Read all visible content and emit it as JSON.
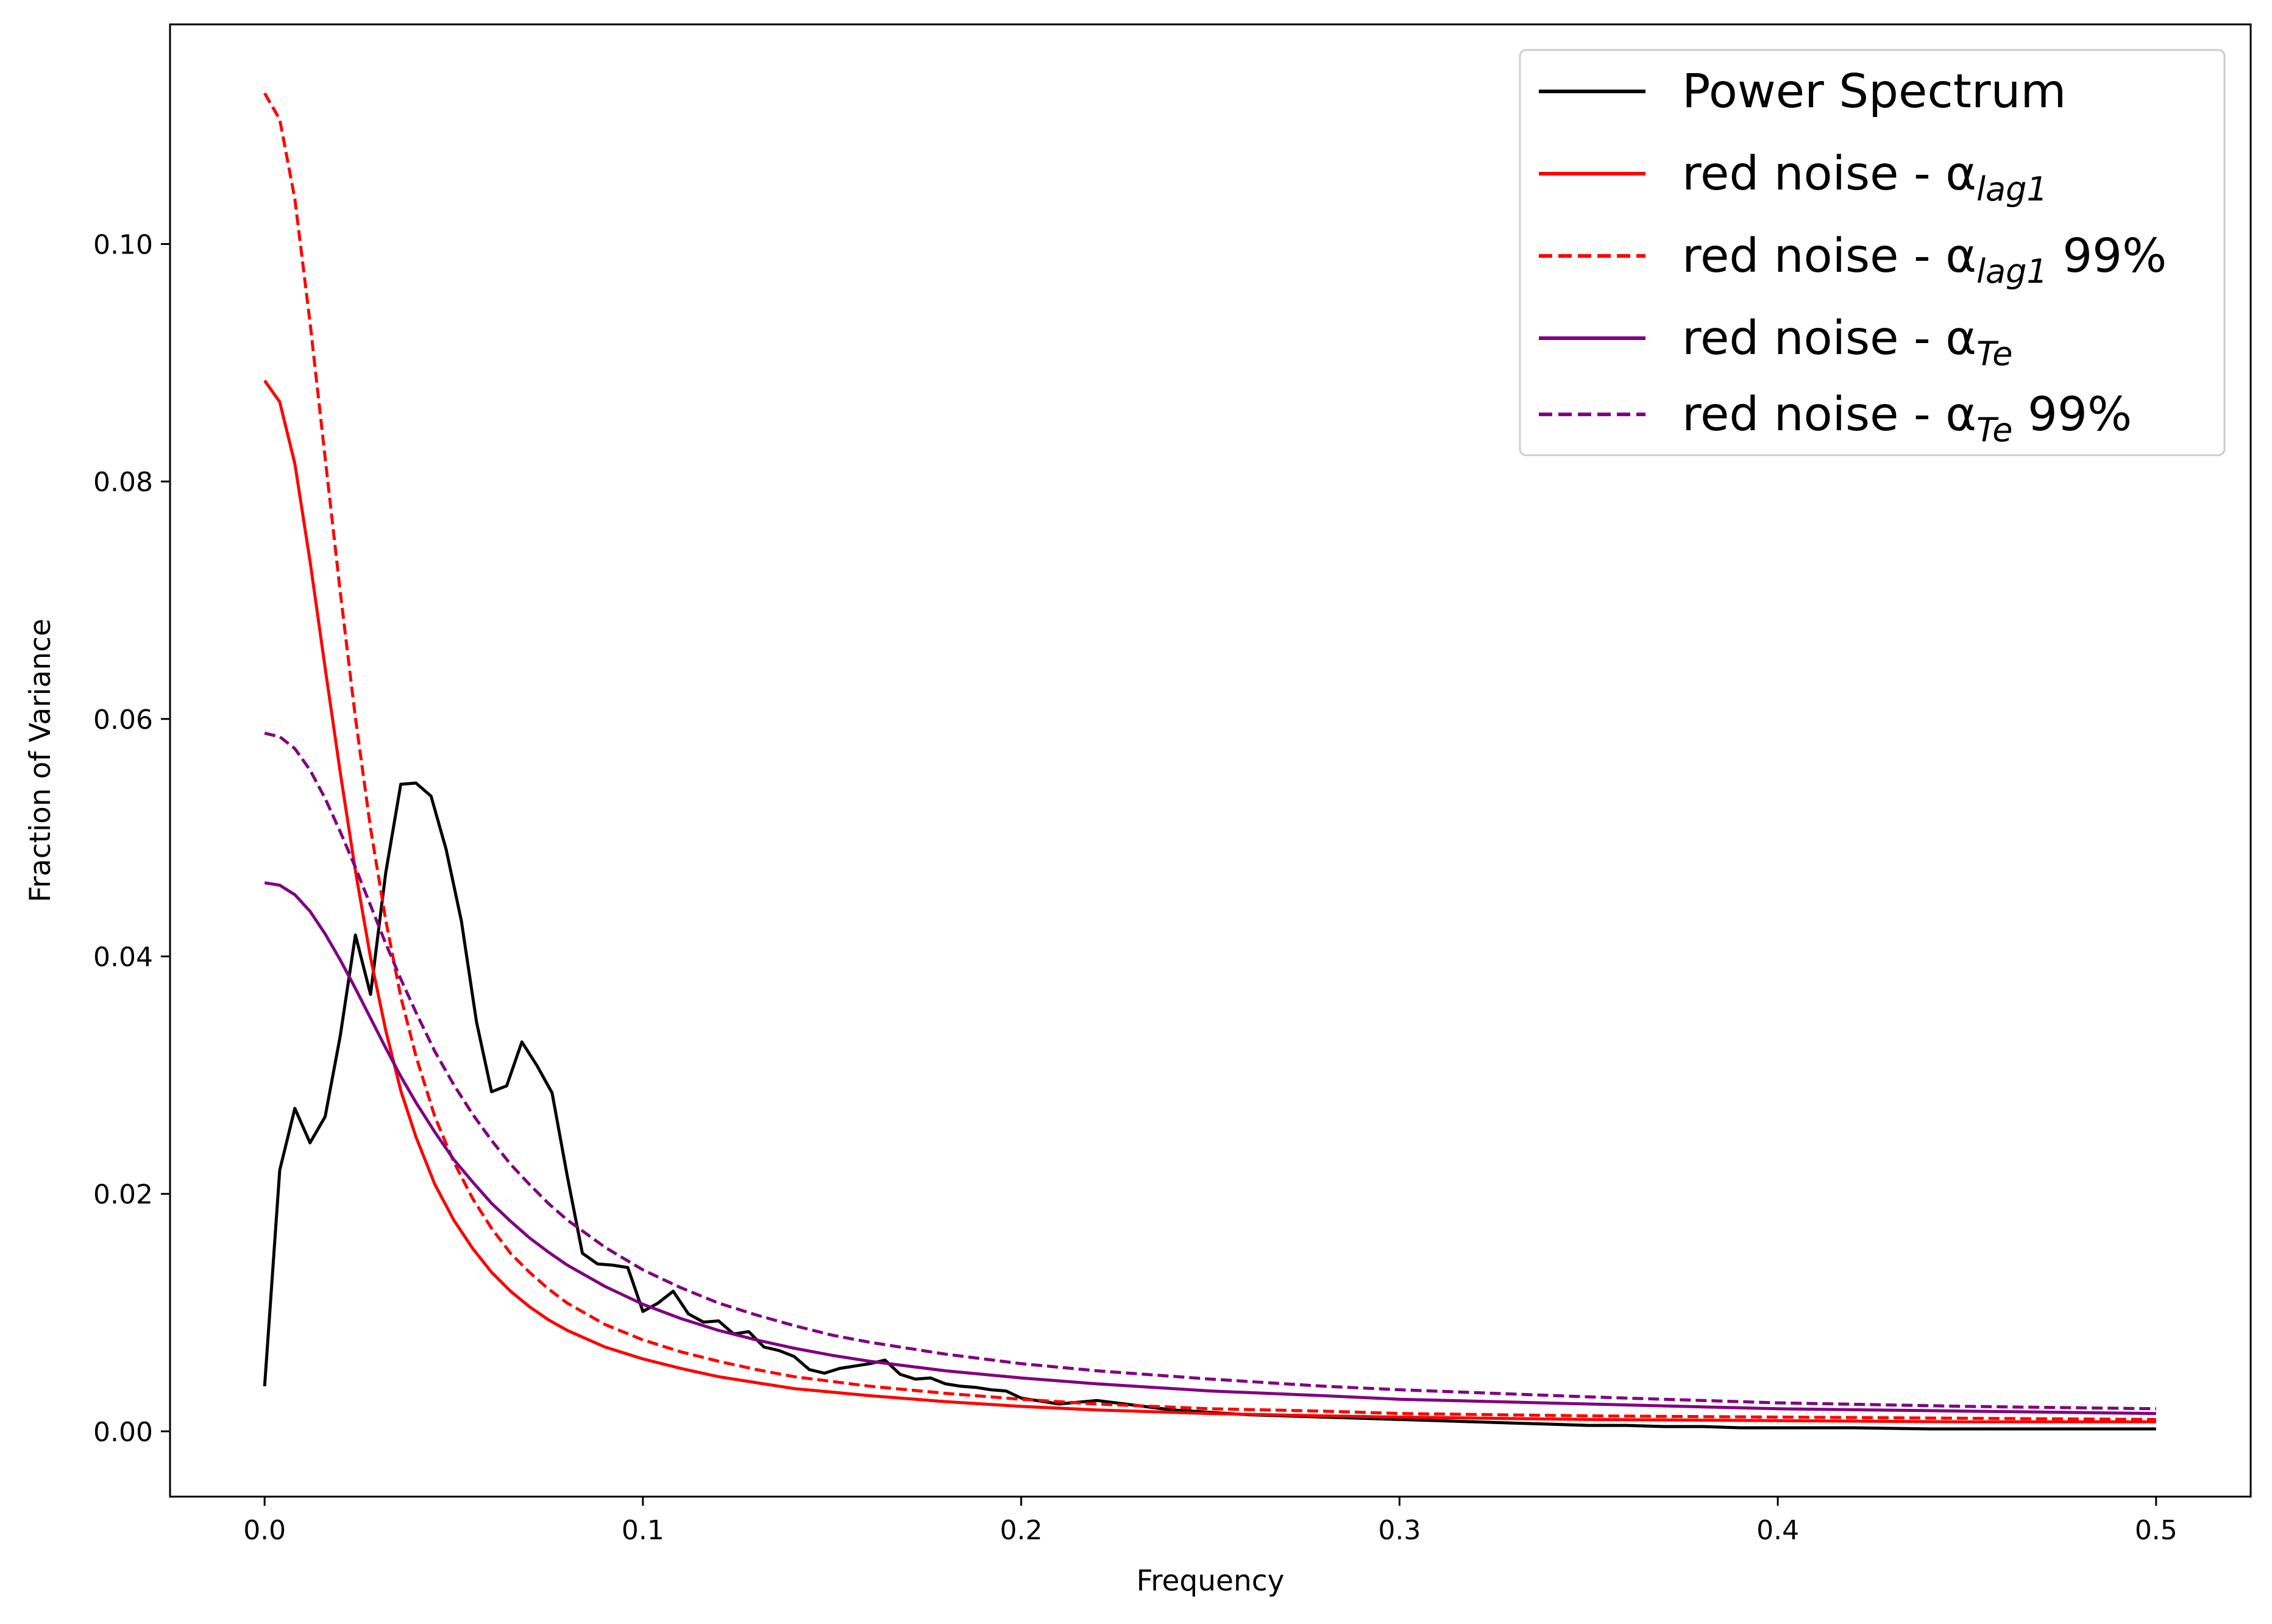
{
  "chart_data": {
    "type": "line",
    "title": "",
    "xlabel": "Frequency",
    "ylabel": "Fraction of Variance",
    "xlim": [
      -0.025,
      0.525
    ],
    "ylim": [
      -0.0055,
      0.1185
    ],
    "xticks": [
      0.0,
      0.1,
      0.2,
      0.3,
      0.4,
      0.5
    ],
    "xtick_labels": [
      "0.0",
      "0.1",
      "0.2",
      "0.3",
      "0.4",
      "0.5"
    ],
    "yticks": [
      0.0,
      0.02,
      0.04,
      0.06,
      0.08,
      0.1
    ],
    "ytick_labels": [
      "0.00",
      "0.02",
      "0.04",
      "0.06",
      "0.08",
      "0.10"
    ],
    "grid": false,
    "legend_position": "top-right",
    "series": [
      {
        "name": "Power Spectrum",
        "label_main": "Power Spectrum",
        "label_sub": "",
        "label_suffix": "",
        "color": "#000000",
        "dash": "solid",
        "x": [
          0.0,
          0.004,
          0.008,
          0.012,
          0.016,
          0.02,
          0.024,
          0.028,
          0.032,
          0.036,
          0.04,
          0.044,
          0.048,
          0.052,
          0.056,
          0.06,
          0.064,
          0.068,
          0.072,
          0.076,
          0.08,
          0.084,
          0.088,
          0.092,
          0.096,
          0.1,
          0.104,
          0.108,
          0.112,
          0.116,
          0.12,
          0.124,
          0.128,
          0.132,
          0.136,
          0.14,
          0.144,
          0.148,
          0.152,
          0.156,
          0.16,
          0.164,
          0.168,
          0.172,
          0.176,
          0.18,
          0.184,
          0.188,
          0.192,
          0.196,
          0.2,
          0.21,
          0.22,
          0.23,
          0.24,
          0.25,
          0.26,
          0.27,
          0.28,
          0.29,
          0.3,
          0.31,
          0.32,
          0.33,
          0.34,
          0.35,
          0.36,
          0.37,
          0.38,
          0.39,
          0.4,
          0.42,
          0.44,
          0.46,
          0.48,
          0.5
        ],
        "y": [
          0.0038,
          0.022,
          0.0272,
          0.0243,
          0.0265,
          0.0333,
          0.0418,
          0.0368,
          0.047,
          0.0545,
          0.0546,
          0.0535,
          0.049,
          0.043,
          0.0345,
          0.0286,
          0.0291,
          0.0328,
          0.0308,
          0.0285,
          0.0215,
          0.015,
          0.0141,
          0.014,
          0.0138,
          0.0101,
          0.0108,
          0.0118,
          0.0099,
          0.0092,
          0.0093,
          0.0082,
          0.0084,
          0.0071,
          0.0068,
          0.0063,
          0.0052,
          0.0049,
          0.0053,
          0.0055,
          0.0057,
          0.006,
          0.0048,
          0.0044,
          0.0045,
          0.004,
          0.0038,
          0.0037,
          0.0035,
          0.0034,
          0.0028,
          0.0023,
          0.0026,
          0.0022,
          0.0018,
          0.0016,
          0.0014,
          0.0013,
          0.0012,
          0.0011,
          0.001,
          0.0009,
          0.0008,
          0.0007,
          0.0006,
          0.0005,
          0.0005,
          0.0004,
          0.0004,
          0.0003,
          0.0003,
          0.0003,
          0.0002,
          0.0002,
          0.0002,
          0.0002
        ]
      },
      {
        "name": "red noise - αlag1",
        "label_main": "red noise - α",
        "label_sub": "lag1",
        "label_suffix": "",
        "color": "#ff0000",
        "dash": "solid",
        "x": [
          0.0,
          0.004,
          0.008,
          0.012,
          0.016,
          0.02,
          0.024,
          0.028,
          0.032,
          0.036,
          0.04,
          0.045,
          0.05,
          0.055,
          0.06,
          0.065,
          0.07,
          0.075,
          0.08,
          0.09,
          0.1,
          0.11,
          0.12,
          0.13,
          0.14,
          0.15,
          0.16,
          0.18,
          0.2,
          0.22,
          0.25,
          0.28,
          0.3,
          0.35,
          0.4,
          0.45,
          0.5
        ],
        "y": [
          0.0885,
          0.0867,
          0.0815,
          0.0733,
          0.0643,
          0.0555,
          0.0472,
          0.0399,
          0.0338,
          0.0287,
          0.0248,
          0.0208,
          0.0178,
          0.0154,
          0.0134,
          0.0118,
          0.0105,
          0.0094,
          0.0085,
          0.0071,
          0.0061,
          0.0053,
          0.0046,
          0.0041,
          0.0036,
          0.0033,
          0.003,
          0.0025,
          0.0021,
          0.0018,
          0.0015,
          0.0013,
          0.0012,
          0.001,
          0.0009,
          0.0008,
          0.0008
        ]
      },
      {
        "name": "red noise - αlag1 99%",
        "label_main": "red noise - α",
        "label_sub": "lag1",
        "label_suffix": " 99%",
        "color": "#ff0000",
        "dash": "dashed",
        "x": [
          0.0,
          0.004,
          0.008,
          0.012,
          0.016,
          0.02,
          0.024,
          0.028,
          0.032,
          0.036,
          0.04,
          0.045,
          0.05,
          0.055,
          0.06,
          0.065,
          0.07,
          0.075,
          0.08,
          0.09,
          0.1,
          0.11,
          0.12,
          0.13,
          0.14,
          0.15,
          0.16,
          0.18,
          0.2,
          0.22,
          0.25,
          0.28,
          0.3,
          0.35,
          0.4,
          0.45,
          0.5
        ],
        "y": [
          0.1127,
          0.1105,
          0.1038,
          0.0934,
          0.082,
          0.0707,
          0.0601,
          0.0508,
          0.0431,
          0.0366,
          0.0316,
          0.0265,
          0.0227,
          0.0196,
          0.0171,
          0.015,
          0.0134,
          0.012,
          0.0108,
          0.009,
          0.0077,
          0.0067,
          0.0059,
          0.0052,
          0.0046,
          0.0042,
          0.0038,
          0.0032,
          0.0027,
          0.0023,
          0.0019,
          0.0017,
          0.0015,
          0.0013,
          0.0012,
          0.0011,
          0.001
        ]
      },
      {
        "name": "red noise - αTe",
        "label_main": "red noise - α",
        "label_sub": "Te",
        "label_suffix": "",
        "color": "#800080",
        "dash": "solid",
        "x": [
          0.0,
          0.004,
          0.008,
          0.012,
          0.016,
          0.02,
          0.024,
          0.028,
          0.032,
          0.036,
          0.04,
          0.045,
          0.05,
          0.055,
          0.06,
          0.065,
          0.07,
          0.075,
          0.08,
          0.09,
          0.1,
          0.11,
          0.12,
          0.13,
          0.14,
          0.15,
          0.16,
          0.18,
          0.2,
          0.22,
          0.25,
          0.28,
          0.3,
          0.35,
          0.4,
          0.45,
          0.5
        ],
        "y": [
          0.0462,
          0.046,
          0.0452,
          0.0438,
          0.0419,
          0.0397,
          0.0373,
          0.0348,
          0.0323,
          0.0299,
          0.0277,
          0.0252,
          0.0229,
          0.021,
          0.0192,
          0.0177,
          0.0163,
          0.0151,
          0.014,
          0.0122,
          0.0107,
          0.0095,
          0.0085,
          0.0077,
          0.007,
          0.0064,
          0.0059,
          0.0051,
          0.0045,
          0.004,
          0.0034,
          0.003,
          0.0027,
          0.0023,
          0.0019,
          0.0017,
          0.0015
        ]
      },
      {
        "name": "red noise - αTe 99%",
        "label_main": "red noise - α",
        "label_sub": "Te",
        "label_suffix": " 99%",
        "color": "#800080",
        "dash": "dashed",
        "x": [
          0.0,
          0.004,
          0.008,
          0.012,
          0.016,
          0.02,
          0.024,
          0.028,
          0.032,
          0.036,
          0.04,
          0.045,
          0.05,
          0.055,
          0.06,
          0.065,
          0.07,
          0.075,
          0.08,
          0.09,
          0.1,
          0.11,
          0.12,
          0.13,
          0.14,
          0.15,
          0.16,
          0.18,
          0.2,
          0.22,
          0.25,
          0.28,
          0.3,
          0.35,
          0.4,
          0.45,
          0.5
        ],
        "y": [
          0.0588,
          0.0585,
          0.0575,
          0.0557,
          0.0533,
          0.0505,
          0.0475,
          0.0443,
          0.0411,
          0.0381,
          0.0353,
          0.032,
          0.0292,
          0.0267,
          0.0245,
          0.0225,
          0.0208,
          0.0192,
          0.0178,
          0.0155,
          0.0136,
          0.0121,
          0.0108,
          0.0098,
          0.0089,
          0.0081,
          0.0075,
          0.0065,
          0.0057,
          0.0051,
          0.0044,
          0.0038,
          0.0035,
          0.0029,
          0.0024,
          0.0021,
          0.0019
        ]
      }
    ]
  }
}
